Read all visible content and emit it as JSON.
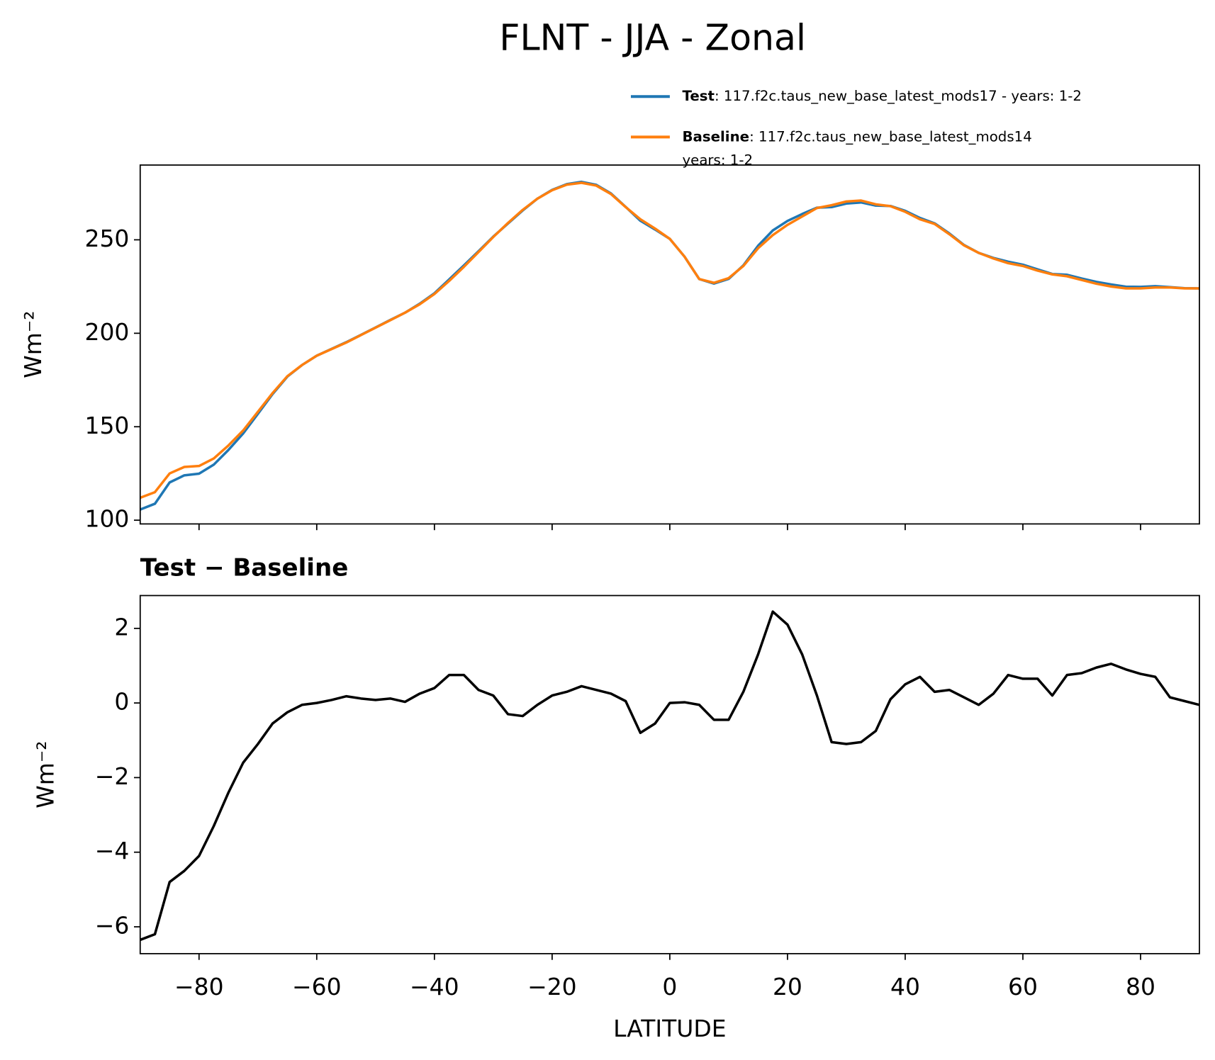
{
  "title": "FLNT - JJA - Zonal",
  "chart_data": [
    {
      "type": "line",
      "ylabel": "Wm⁻²",
      "x": [
        -90,
        -87.5,
        -85,
        -82.5,
        -80,
        -77.5,
        -75,
        -72.5,
        -70,
        -67.5,
        -65,
        -62.5,
        -60,
        -57.5,
        -55,
        -52.5,
        -50,
        -47.5,
        -45,
        -42.5,
        -40,
        -37.5,
        -35,
        -32.5,
        -30,
        -27.5,
        -25,
        -22.5,
        -20,
        -17.5,
        -15,
        -12.5,
        -10,
        -7.5,
        -5,
        -2.5,
        0,
        2.5,
        5,
        7.5,
        10,
        12.5,
        15,
        17.5,
        20,
        22.5,
        25,
        27.5,
        30,
        32.5,
        35,
        37.5,
        40,
        42.5,
        45,
        47.5,
        50,
        52.5,
        55,
        57.5,
        60,
        62.5,
        65,
        67.5,
        70,
        72.5,
        75,
        77.5,
        80,
        82.5,
        85,
        87.5,
        90
      ],
      "series": [
        {
          "name": "Test",
          "description": [
            ": 117.f2c.taus_new_base_latest_mods17 - years: 1-2"
          ],
          "color": "#1f77b4",
          "values": [
            105.7,
            108.8,
            120.2,
            124.0,
            124.9,
            129.7,
            137.6,
            146.4,
            156.9,
            167.5,
            176.8,
            183.0,
            188.0,
            191.6,
            195.2,
            199.1,
            203.1,
            207.1,
            211.0,
            215.8,
            221.4,
            228.8,
            236.3,
            243.9,
            251.7,
            258.7,
            265.7,
            272.0,
            276.7,
            279.8,
            281.0,
            279.4,
            274.8,
            267.6,
            260.2,
            255.5,
            250.5,
            241.0,
            229.0,
            226.6,
            229.1,
            236.3,
            246.8,
            255.0,
            260.1,
            263.8,
            267.2,
            267.5,
            269.4,
            270.0,
            268.3,
            268.1,
            265.5,
            261.7,
            258.8,
            253.4,
            247.2,
            243.0,
            240.3,
            238.3,
            236.7,
            234.2,
            231.7,
            231.3,
            229.3,
            227.5,
            226.1,
            224.9,
            224.8,
            225.2,
            224.7,
            224.1,
            224.0
          ]
        },
        {
          "name": "Baseline",
          "description": [
            ": 117.f2c.taus_new_base_latest_mods14",
            "years: 1-2"
          ],
          "color": "#ff7f0e",
          "values": [
            112,
            115,
            125,
            128.5,
            129,
            133,
            140,
            148,
            158,
            168,
            177,
            183,
            188,
            191.5,
            195,
            199,
            203,
            207,
            211,
            215.5,
            221,
            228,
            235.5,
            243.5,
            251.5,
            259,
            266,
            272,
            276.5,
            279.5,
            280.5,
            279,
            274.5,
            267.5,
            261,
            256,
            250.5,
            241,
            229,
            227,
            229.5,
            236,
            245.5,
            252.5,
            258,
            262.5,
            267,
            268.5,
            270.5,
            271,
            269,
            268,
            265,
            261,
            258.5,
            253,
            247,
            243,
            240,
            237.5,
            236,
            233.5,
            231.5,
            230.5,
            228.5,
            226.5,
            225,
            224,
            224,
            224.5,
            224.5,
            224,
            224
          ]
        }
      ],
      "xlim": [
        -90,
        90
      ],
      "xticks": [
        -80,
        -60,
        -40,
        -20,
        0,
        20,
        40,
        60,
        80
      ],
      "ylim": [
        98,
        290
      ],
      "yticks": [
        100,
        150,
        200,
        250
      ]
    },
    {
      "type": "line",
      "title": "Test − Baseline",
      "xlabel": "LATITUDE",
      "ylabel": "Wm⁻²",
      "x": [
        -90,
        -87.5,
        -85,
        -82.5,
        -80,
        -77.5,
        -75,
        -72.5,
        -70,
        -67.5,
        -65,
        -62.5,
        -60,
        -57.5,
        -55,
        -52.5,
        -50,
        -47.5,
        -45,
        -42.5,
        -40,
        -37.5,
        -35,
        -32.5,
        -30,
        -27.5,
        -25,
        -22.5,
        -20,
        -17.5,
        -15,
        -12.5,
        -10,
        -7.5,
        -5,
        -2.5,
        0,
        2.5,
        5,
        7.5,
        10,
        12.5,
        15,
        17.5,
        20,
        22.5,
        25,
        27.5,
        30,
        32.5,
        35,
        37.5,
        40,
        42.5,
        45,
        47.5,
        50,
        52.5,
        55,
        57.5,
        60,
        62.5,
        65,
        67.5,
        70,
        72.5,
        75,
        77.5,
        80,
        82.5,
        85,
        87.5,
        90
      ],
      "series": [
        {
          "color": "#000000",
          "values": [
            -6.35,
            -6.2,
            -4.8,
            -4.5,
            -4.1,
            -3.3,
            -2.4,
            -1.6,
            -1.1,
            -0.55,
            -0.25,
            -0.05,
            0.0,
            0.08,
            0.18,
            0.12,
            0.08,
            0.12,
            0.03,
            0.25,
            0.4,
            0.75,
            0.75,
            0.35,
            0.2,
            -0.3,
            -0.35,
            -0.05,
            0.2,
            0.3,
            0.45,
            0.35,
            0.25,
            0.05,
            -0.8,
            -0.55,
            0.0,
            0.02,
            -0.05,
            -0.45,
            -0.45,
            0.3,
            1.3,
            2.45,
            2.1,
            1.3,
            0.2,
            -1.05,
            -1.1,
            -1.05,
            -0.75,
            0.1,
            0.5,
            0.7,
            0.3,
            0.35,
            0.15,
            -0.05,
            0.25,
            0.75,
            0.65,
            0.65,
            0.2,
            0.75,
            0.8,
            0.95,
            1.05,
            0.9,
            0.78,
            0.7,
            0.15,
            0.05,
            -0.05
          ]
        }
      ],
      "xlim": [
        -90,
        90
      ],
      "xticks": [
        {
          "value": -80,
          "label": "−80"
        },
        {
          "value": -60,
          "label": "−60"
        },
        {
          "value": -40,
          "label": "−40"
        },
        {
          "value": -20,
          "label": "−20"
        },
        0,
        20,
        40,
        60,
        80
      ],
      "ylim": [
        -6.72,
        2.88
      ],
      "yticks": [
        {
          "value": -6,
          "label": "−6"
        },
        {
          "value": -4,
          "label": "−4"
        },
        {
          "value": -2,
          "label": "−2"
        },
        0,
        2
      ]
    }
  ]
}
